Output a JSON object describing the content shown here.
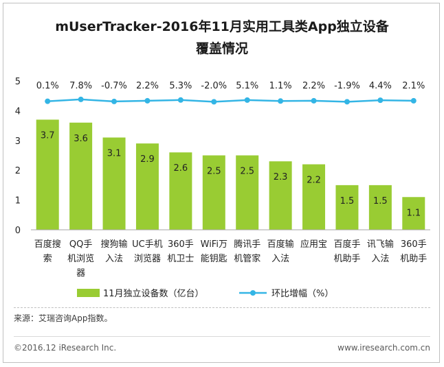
{
  "chart_data": {
    "type": "bar",
    "title_line1": "mUserTracker-2016年11月实用工具类App独立设备",
    "title_line2": "覆盖情况",
    "categories": [
      [
        "百度搜",
        "索"
      ],
      [
        "QQ手",
        "机浏览",
        "器"
      ],
      [
        "搜狗输",
        "入法"
      ],
      [
        "UC手机",
        "浏览器"
      ],
      [
        "360手",
        "机卫士"
      ],
      [
        "WiFi万",
        "能钥匙"
      ],
      [
        "腾讯手",
        "机管家"
      ],
      [
        "百度输",
        "入法"
      ],
      [
        "应用宝"
      ],
      [
        "百度手",
        "机助手"
      ],
      [
        "讯飞输",
        "入法"
      ],
      [
        "360手",
        "机助手"
      ]
    ],
    "series": [
      {
        "name": "11月独立设备数（亿台）",
        "type": "bar",
        "values": [
          3.7,
          3.6,
          3.1,
          2.9,
          2.6,
          2.5,
          2.5,
          2.3,
          2.2,
          1.5,
          1.5,
          1.1
        ],
        "color": "#99cc33"
      },
      {
        "name": "环比增幅（%）",
        "type": "line",
        "values": [
          0.1,
          7.8,
          -0.7,
          2.2,
          5.3,
          -2.0,
          5.1,
          1.1,
          2.2,
          -1.9,
          4.4,
          2.1
        ],
        "labels": [
          "0.1%",
          "7.8%",
          "-0.7%",
          "2.2%",
          "5.3%",
          "-2.0%",
          "5.1%",
          "1.1%",
          "2.2%",
          "-1.9%",
          "4.4%",
          "2.1%"
        ],
        "color": "#33b5e5"
      }
    ],
    "ylim": [
      0,
      5
    ],
    "yticks": [
      "0",
      "1",
      "2",
      "3",
      "4",
      "5"
    ],
    "line_band": [
      4.3,
      4.38
    ],
    "legend_position": "bottom"
  },
  "source_text": "来源：艾瑞咨询App指数。",
  "footer": {
    "copyright": "©2016.12 iResearch Inc.",
    "website": "www.iresearch.com.cn"
  }
}
